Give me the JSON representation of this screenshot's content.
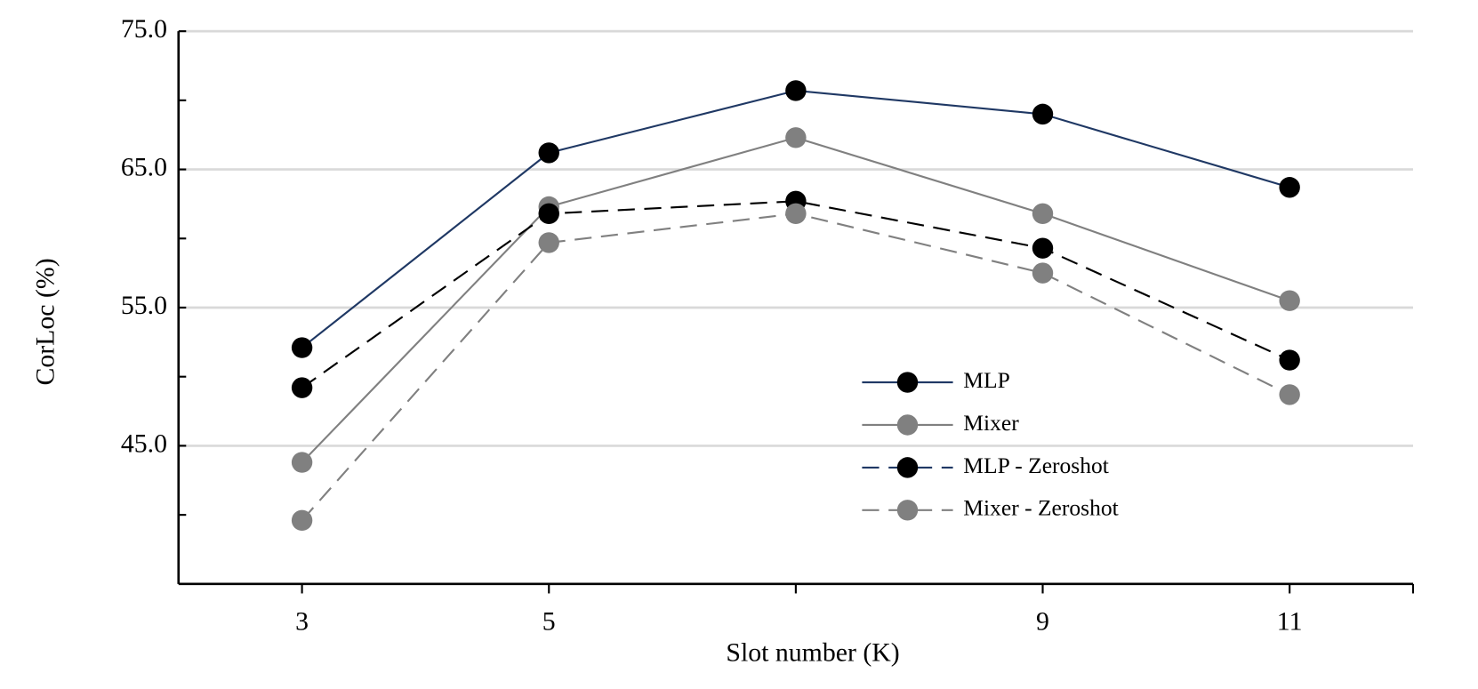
{
  "chart_data": {
    "type": "line",
    "x_label": "Slot number  (K)",
    "y_label": "CorLoc (%)",
    "categories": [
      "3",
      "5",
      null,
      "9",
      "11"
    ],
    "series": [
      {
        "name": "MLP",
        "color": "#1f3864",
        "marker_color": "#000000",
        "dash": false,
        "values": [
          52.1,
          66.2,
          70.7,
          69.0,
          63.7
        ]
      },
      {
        "name": "Mixer",
        "color": "#808080",
        "marker_color": "#808080",
        "dash": false,
        "values": [
          43.8,
          62.3,
          67.3,
          61.8,
          55.5
        ]
      },
      {
        "name": "MLP - Zeroshot",
        "color": "#000000",
        "legend_color": "#1f3864",
        "marker_color": "#000000",
        "dash": true,
        "values": [
          49.2,
          61.8,
          62.7,
          59.3,
          51.2
        ]
      },
      {
        "name": "Mixer - Zeroshot",
        "color": "#808080",
        "marker_color": "#808080",
        "dash": true,
        "values": [
          39.6,
          59.7,
          61.8,
          57.5,
          48.7
        ]
      }
    ],
    "ylim": [
      35,
      75
    ],
    "yticks": [
      {
        "value": 45,
        "label": "45.0"
      },
      {
        "value": 55,
        "label": "55.0"
      },
      {
        "value": 65,
        "label": "65.0"
      },
      {
        "value": 75,
        "label": "75.0"
      }
    ],
    "grid": true,
    "legend": "center right"
  }
}
